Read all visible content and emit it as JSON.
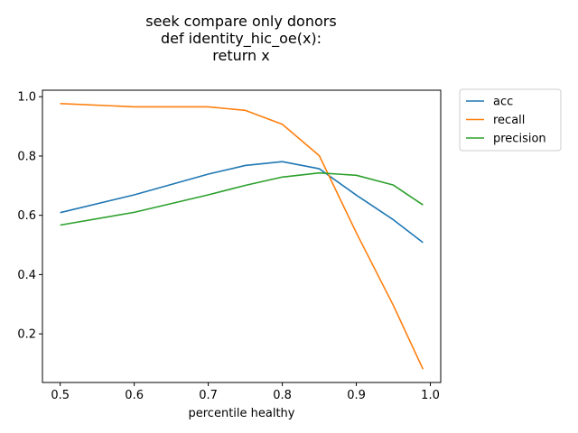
{
  "chart_data": {
    "type": "line",
    "title": [
      "seek compare only donors",
      "def identity_hic_oe(x):",
      "return x"
    ],
    "xlabel": "percentile healthy",
    "ylabel": "",
    "xlim": [
      0.476,
      1.014
    ],
    "ylim": [
      0.036,
      1.022
    ],
    "xticks": [
      0.5,
      0.6,
      0.7,
      0.8,
      0.9,
      1.0
    ],
    "xtick_labels": [
      "0.5",
      "0.6",
      "0.7",
      "0.8",
      "0.9",
      "1.0"
    ],
    "yticks": [
      0.2,
      0.4,
      0.6,
      0.8,
      1.0
    ],
    "ytick_labels": [
      "0.2",
      "0.4",
      "0.6",
      "0.8",
      "1.0"
    ],
    "grid": false,
    "legend_position": "outside-top-right",
    "x": [
      0.5,
      0.6,
      0.7,
      0.75,
      0.8,
      0.85,
      0.9,
      0.95,
      0.99
    ],
    "series": [
      {
        "name": "acc",
        "color": "#1f77b4",
        "values": [
          0.609,
          0.669,
          0.739,
          0.768,
          0.781,
          0.757,
          0.668,
          0.585,
          0.508
        ]
      },
      {
        "name": "recall",
        "color": "#ff7f0e",
        "values": [
          0.977,
          0.966,
          0.966,
          0.954,
          0.907,
          0.801,
          0.541,
          0.296,
          0.081
        ]
      },
      {
        "name": "precision",
        "color": "#2ca02c",
        "values": [
          0.567,
          0.61,
          0.669,
          0.701,
          0.729,
          0.743,
          0.735,
          0.702,
          0.635
        ]
      }
    ]
  }
}
